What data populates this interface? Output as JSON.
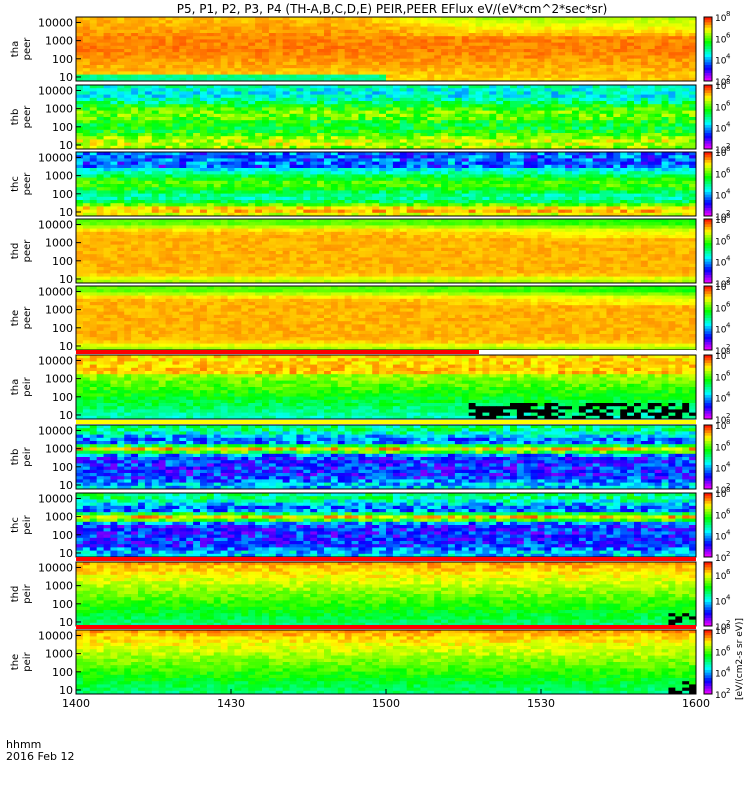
{
  "chart_data": {
    "type": "heatmap",
    "title": "P5, P1, P2, P3, P4 (TH-A,B,C,D,E) PEIR,PEER EFlux eV/(eV*cm^2*sec*sr)",
    "x_axis": {
      "range": [
        "1400",
        "1600"
      ],
      "tick_labels": [
        "1400",
        "1430",
        "1500",
        "1530",
        "1600"
      ],
      "footer_line1": "hhmm",
      "footer_line2": "2016 Feb 12"
    },
    "y_axis": {
      "scale": "log",
      "range": [
        6,
        20000
      ],
      "tick_labels": [
        "10000",
        "1000",
        "100",
        "10"
      ]
    },
    "panels": [
      {
        "probe": "tha",
        "species": "peer",
        "cb_exp": [
          2,
          8
        ],
        "indicator": "none",
        "pattern": "tha_peer"
      },
      {
        "probe": "thb",
        "species": "peer",
        "cb_exp": [
          2,
          8
        ],
        "indicator": "none",
        "pattern": "bands_green"
      },
      {
        "probe": "thc",
        "species": "peer",
        "cb_exp": [
          2,
          8
        ],
        "indicator": "none",
        "pattern": "bands_blue"
      },
      {
        "probe": "thd",
        "species": "peer",
        "cb_exp": [
          2,
          8
        ],
        "indicator": "none",
        "pattern": "red_mass"
      },
      {
        "probe": "the",
        "species": "peer",
        "cb_exp": [
          2,
          8
        ],
        "indicator": "none",
        "pattern": "red_mass"
      },
      {
        "probe": "tha",
        "species": "peir",
        "cb_exp": [
          2,
          8
        ],
        "indicator": "red_partial",
        "pattern": "tha_peir"
      },
      {
        "probe": "thb",
        "species": "peir",
        "cb_exp": [
          2,
          8
        ],
        "indicator": "yellow",
        "pattern": "ion_bands_blue"
      },
      {
        "probe": "thc",
        "species": "peir",
        "cb_exp": [
          2,
          8
        ],
        "indicator": "none",
        "pattern": "ion_bands_blue"
      },
      {
        "probe": "thd",
        "species": "peir",
        "cb_exp": [
          2,
          7
        ],
        "indicator": "red_full",
        "pattern": "ion_green"
      },
      {
        "probe": "the",
        "species": "peir",
        "cb_exp": [
          2,
          8
        ],
        "indicator": "red_full",
        "pattern": "ion_green"
      }
    ],
    "colorbar_label": "[eV/(cm2-s sr eV)]",
    "colors": {
      "scale": [
        "#ff00ff",
        "#0000ff",
        "#00ffff",
        "#00ff00",
        "#ffff00",
        "#ff0000"
      ],
      "indicator_red": "#ff0000",
      "indicator_yellow": "#ffff00",
      "indicator_white": "#ffffff"
    }
  }
}
